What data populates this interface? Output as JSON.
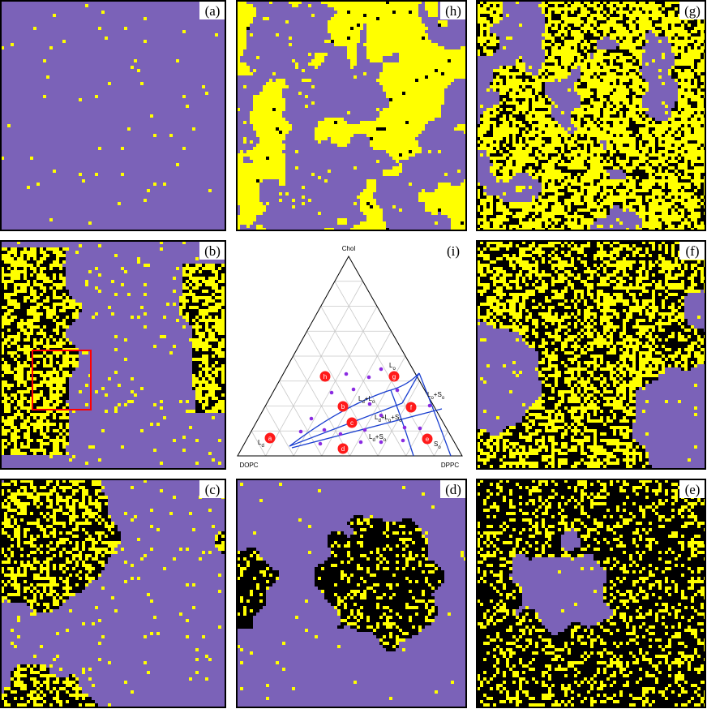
{
  "panels": [
    {
      "label": "(a)"
    },
    {
      "label": "(h)"
    },
    {
      "label": "(g)"
    },
    {
      "label": "(b)"
    },
    {
      "label": "(i)"
    },
    {
      "label": "(f)"
    },
    {
      "label": "(c)"
    },
    {
      "label": "(d)"
    },
    {
      "label": "(e)"
    }
  ],
  "diagram": {
    "vertices": {
      "top": "Chol",
      "left": "DOPC",
      "right": "DPPC"
    },
    "points": [
      "a",
      "b",
      "c",
      "d",
      "e",
      "f",
      "g",
      "h"
    ],
    "phase_labels": [
      [
        "L",
        "o"
      ],
      [
        "L",
        "d",
        "+L",
        "o"
      ],
      [
        "L",
        "o",
        "+S",
        "o"
      ],
      [
        "L",
        "d",
        "+L",
        "o",
        "+S",
        "o"
      ],
      [
        "L",
        "d",
        "+S",
        "o"
      ],
      [
        "L",
        "d"
      ],
      [
        "S",
        "o"
      ]
    ]
  }
}
